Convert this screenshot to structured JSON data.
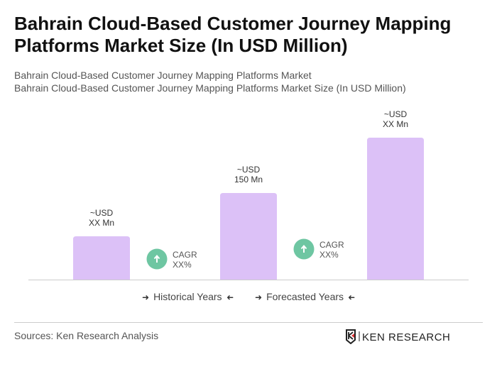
{
  "title": "Bahrain Cloud-Based Customer Journey Mapping Platforms Market Size (In USD Million)",
  "subtitle1": "Bahrain Cloud-Based Customer Journey Mapping Platforms Market",
  "subtitle2": "Bahrain Cloud-Based Customer Journey Mapping Platforms Market Size (In USD Million)",
  "chart_data": {
    "type": "bar",
    "bars": [
      {
        "label_line1": "~USD",
        "label_line2": "XX Mn",
        "value": 75
      },
      {
        "label_line1": "~USD",
        "label_line2": "150 Mn",
        "value": 150
      },
      {
        "label_line1": "~USD",
        "label_line2": "XX Mn",
        "value": 246
      }
    ],
    "cagr": [
      {
        "line1": "CAGR",
        "line2": "XX%"
      },
      {
        "line1": "CAGR",
        "line2": "XX%"
      }
    ],
    "bar_color": "#dcc1f7",
    "cagr_color": "#6ec6a2"
  },
  "legend": {
    "historical": "Historical Years",
    "forecasted": "Forecasted Years"
  },
  "sources": "Sources: Ken Research Analysis",
  "logo_text": "KEN RESEARCH"
}
